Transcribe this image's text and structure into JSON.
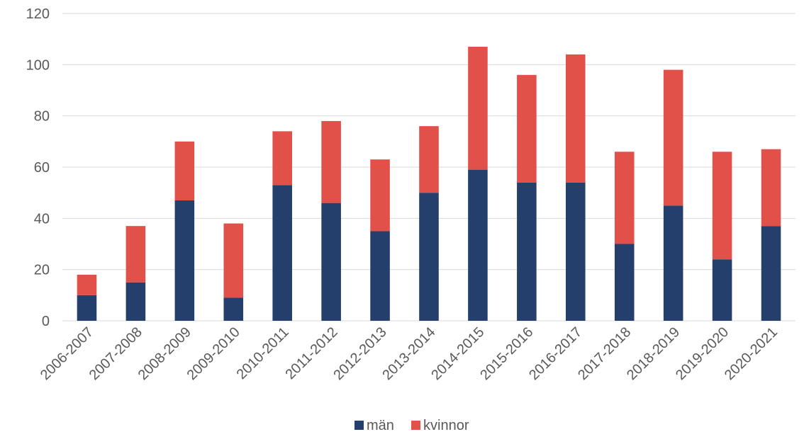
{
  "chart_data": {
    "type": "bar",
    "stacked": true,
    "title": "",
    "xlabel": "",
    "ylabel": "",
    "ylim": [
      0,
      120
    ],
    "yticks": [
      0,
      20,
      40,
      60,
      80,
      100,
      120
    ],
    "grid": true,
    "legend_position": "bottom",
    "categories": [
      "2006-2007",
      "2007-2008",
      "2008-2009",
      "2009-2010",
      "2010-2011",
      "2011-2012",
      "2012-2013",
      "2013-2014",
      "2014-2015",
      "2015-2016",
      "2016-2017",
      "2017-2018",
      "2018-2019",
      "2019-2020",
      "2020-2021"
    ],
    "series": [
      {
        "name": "män",
        "color": "#243f6b",
        "values": [
          10,
          15,
          47,
          9,
          53,
          46,
          35,
          50,
          59,
          54,
          54,
          30,
          45,
          24,
          37
        ]
      },
      {
        "name": "kvinnor",
        "color": "#e2504a",
        "values": [
          8,
          22,
          23,
          29,
          21,
          32,
          28,
          26,
          48,
          42,
          50,
          36,
          53,
          42,
          30
        ]
      }
    ],
    "gridline_color": "#d9d9d9",
    "axis_color": "#d9d9d9"
  }
}
